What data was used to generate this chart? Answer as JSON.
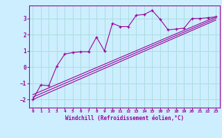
{
  "xlabel": "Windchill (Refroidissement éolien,°C)",
  "bg_color": "#cceeff",
  "grid_color": "#aadddd",
  "line_color": "#990099",
  "xlim": [
    -0.5,
    23.5
  ],
  "ylim": [
    -2.5,
    3.8
  ],
  "xticks": [
    0,
    1,
    2,
    3,
    4,
    5,
    6,
    7,
    8,
    9,
    10,
    11,
    12,
    13,
    14,
    15,
    16,
    17,
    18,
    19,
    20,
    21,
    22,
    23
  ],
  "yticks": [
    -2,
    -1,
    0,
    1,
    2,
    3
  ],
  "line1_x": [
    0,
    1,
    2,
    3,
    4,
    5,
    6,
    7,
    8,
    9,
    10,
    11,
    12,
    13,
    14,
    15,
    16,
    17,
    18,
    19,
    20,
    21,
    22,
    23
  ],
  "line1_y": [
    -2.0,
    -1.1,
    -1.15,
    0.05,
    0.8,
    0.9,
    0.95,
    0.95,
    1.85,
    1.0,
    2.7,
    2.5,
    2.5,
    3.2,
    3.25,
    3.5,
    2.95,
    2.3,
    2.35,
    2.4,
    3.0,
    3.0,
    3.05,
    3.1
  ],
  "line2_x": [
    0,
    23
  ],
  "line2_y": [
    -2.0,
    2.9
  ],
  "line3_x": [
    0,
    23
  ],
  "line3_y": [
    -1.7,
    3.1
  ],
  "line4_x": [
    0,
    23
  ],
  "line4_y": [
    -1.85,
    3.0
  ]
}
